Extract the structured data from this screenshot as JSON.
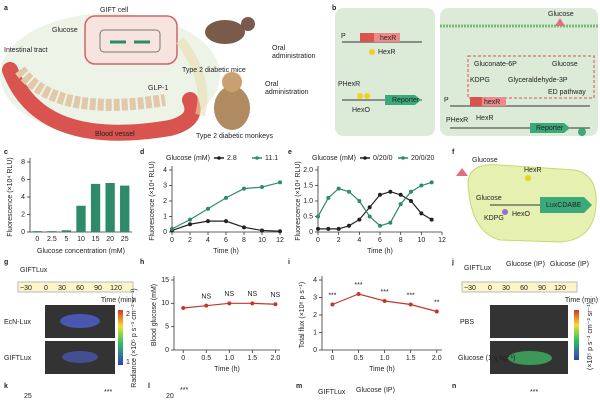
{
  "panel_labels": [
    "a",
    "b",
    "c",
    "d",
    "e",
    "f",
    "g",
    "h",
    "i",
    "j",
    "k",
    "l",
    "m",
    "n"
  ],
  "panel_a": {
    "gift_cell": "GIFT cell",
    "glucose": "Glucose",
    "intestinal_tract": "Intestinal tract",
    "glp1": "GLP-1",
    "blood_vessel": "Blood vessel",
    "oral_mice": [
      "Oral",
      "administration"
    ],
    "oral_monkeys": [
      "Oral",
      "administration"
    ],
    "mice": "Type 2 diabetic mice",
    "monkeys": "Type 2 diabetic monkeys"
  },
  "panel_b": {
    "left": [
      "P",
      "hexR",
      "HexR",
      "PHexR",
      "HexO",
      "Reporter"
    ],
    "right": [
      "Glucose",
      "Gluconate-6P",
      "Glucose",
      "KDPG",
      "Glyceraldehyde-3P",
      "ED pathway",
      "P",
      "hexR",
      "HexR",
      "PHexR",
      "Reporter"
    ]
  },
  "panel_f": [
    "Glucose",
    "HexR",
    "Glucose",
    "KDPG",
    "HexO",
    "LuxCDABE"
  ],
  "panel_g": {
    "strain": "GIFTLux",
    "times": [
      "~30",
      "0",
      "30",
      "60",
      "90",
      "120"
    ],
    "time_label": "Time (min)",
    "rows": [
      "EcN-Lux",
      "GIFTLux"
    ],
    "scale_label": "Radiance (×10⁵ p s⁻¹ cm⁻² sr⁻¹)",
    "scale_ticks": [
      "1",
      "2"
    ]
  },
  "panel_j": {
    "strain": "GIFTLux",
    "glucose_1": "Glucose (IP)",
    "glucose_2": "Glucose (IP)",
    "times": [
      "~30",
      "0",
      "30",
      "60",
      "90",
      "120"
    ],
    "time_label": "Time (min)",
    "rows": [
      "PBS",
      "Glucose (1 g kg⁻¹)"
    ],
    "scale_label": "(×10⁵ p s⁻¹ cm⁻² sr⁻¹)"
  },
  "bottom_row": {
    "k_tick": "25",
    "k_sig": "***",
    "l_tick": "20",
    "l_sig": "***",
    "m_strain": "GIFTLux",
    "m_glucose": "Glucose (IP)",
    "n_sig": "***"
  },
  "chart_data": [
    {
      "type": "bar",
      "xlabel": "Glucose concentration (mM)",
      "ylabel": "Fluorescence (×10⁴ RLU)",
      "categories": [
        "0",
        "2.5",
        "5",
        "10",
        "15",
        "20",
        "25"
      ],
      "values": [
        0.1,
        0.1,
        0.2,
        3.0,
        5.5,
        5.6,
        5.3
      ],
      "color": "#2e8b6a",
      "ylim": [
        0,
        8
      ],
      "yticks": [
        0,
        2,
        4,
        6,
        8
      ]
    },
    {
      "type": "line",
      "legend_title": "Glucose (mM)",
      "xlabel": "Time (h)",
      "ylabel": "Fluorescence (×10⁴ RLU)",
      "x": [
        0,
        2,
        4,
        6,
        8,
        10,
        12
      ],
      "series": [
        {
          "name": "2.8",
          "color": "#222222",
          "values": [
            0.1,
            0.5,
            0.7,
            0.7,
            0.3,
            0.1,
            0.05
          ]
        },
        {
          "name": "11.1",
          "color": "#2e8b6a",
          "values": [
            0.2,
            0.8,
            1.5,
            2.2,
            2.8,
            2.9,
            3.2
          ]
        }
      ],
      "xlim": [
        0,
        12
      ],
      "xticks": [
        0,
        2,
        4,
        6,
        8,
        10,
        12
      ],
      "ylim": [
        0,
        4
      ],
      "yticks": [
        0,
        1,
        2,
        3,
        4
      ]
    },
    {
      "type": "line",
      "legend_title": "Glucose (mM)",
      "xlabel": "Time (h)",
      "ylabel": "Fluorescence (×10⁴ RLU)",
      "x": [
        0,
        1,
        2,
        3,
        4,
        5,
        6,
        7,
        8,
        9,
        10,
        11
      ],
      "series": [
        {
          "name": "0/20/0",
          "color": "#222222",
          "values": [
            0.1,
            0.1,
            0.1,
            0.2,
            0.4,
            0.8,
            1.2,
            1.3,
            1.2,
            1.0,
            0.6,
            0.4
          ]
        },
        {
          "name": "20/0/20",
          "color": "#2e8b6a",
          "values": [
            0.5,
            1.1,
            1.4,
            1.3,
            1.0,
            0.5,
            0.2,
            0.3,
            0.9,
            1.3,
            1.5,
            1.6
          ]
        }
      ],
      "xlim": [
        0,
        12
      ],
      "xticks": [
        0,
        2,
        4,
        6,
        8,
        10,
        12
      ],
      "ylim": [
        0,
        2
      ],
      "yticks": [
        0,
        0.5,
        {
          "value": 1,
          "label": "1.0"
        },
        1.5,
        {
          "value": 2,
          "label": "2.0"
        }
      ]
    },
    {
      "type": "line",
      "xlabel": "Time (h)",
      "ylabel": "Blood glucose (mM)",
      "x": [
        0,
        0.5,
        1,
        1.5,
        2
      ],
      "values": [
        9,
        9.5,
        10,
        10,
        9.8
      ],
      "color": "#c0392b",
      "xlim": [
        -0.2,
        2.1
      ],
      "xticks": [
        0,
        0.5,
        {
          "value": 1,
          "label": "1.0"
        },
        1.5,
        {
          "value": 2,
          "label": "2.0"
        }
      ],
      "ylim": [
        0,
        15
      ],
      "yticks": [
        0,
        5,
        10,
        15
      ],
      "annotations": [
        {
          "x": 0.5,
          "text": "NS"
        },
        {
          "x": 1,
          "text": "NS"
        },
        {
          "x": 1.5,
          "text": "NS"
        },
        {
          "x": 2,
          "text": "NS"
        }
      ]
    },
    {
      "type": "line",
      "xlabel": "Time (h)",
      "ylabel": "Total flux (×10⁸ p s⁻¹)",
      "x": [
        0,
        0.5,
        1,
        1.5,
        2
      ],
      "values": [
        2.6,
        3.2,
        2.8,
        2.6,
        2.2
      ],
      "color": "#c0392b",
      "xlim": [
        -0.2,
        2.1
      ],
      "xticks": [
        0,
        0.5,
        {
          "value": 1,
          "label": "1.0"
        },
        1.5,
        {
          "value": 2,
          "label": "2.0"
        }
      ],
      "ylim": [
        0,
        4
      ],
      "yticks": [
        0,
        1,
        2,
        3,
        4
      ],
      "annotations": [
        {
          "x": 0,
          "text": "***"
        },
        {
          "x": 0.5,
          "text": "***"
        },
        {
          "x": 1,
          "text": "***"
        },
        {
          "x": 1.5,
          "text": "***"
        },
        {
          "x": 2,
          "text": "**"
        }
      ]
    }
  ]
}
